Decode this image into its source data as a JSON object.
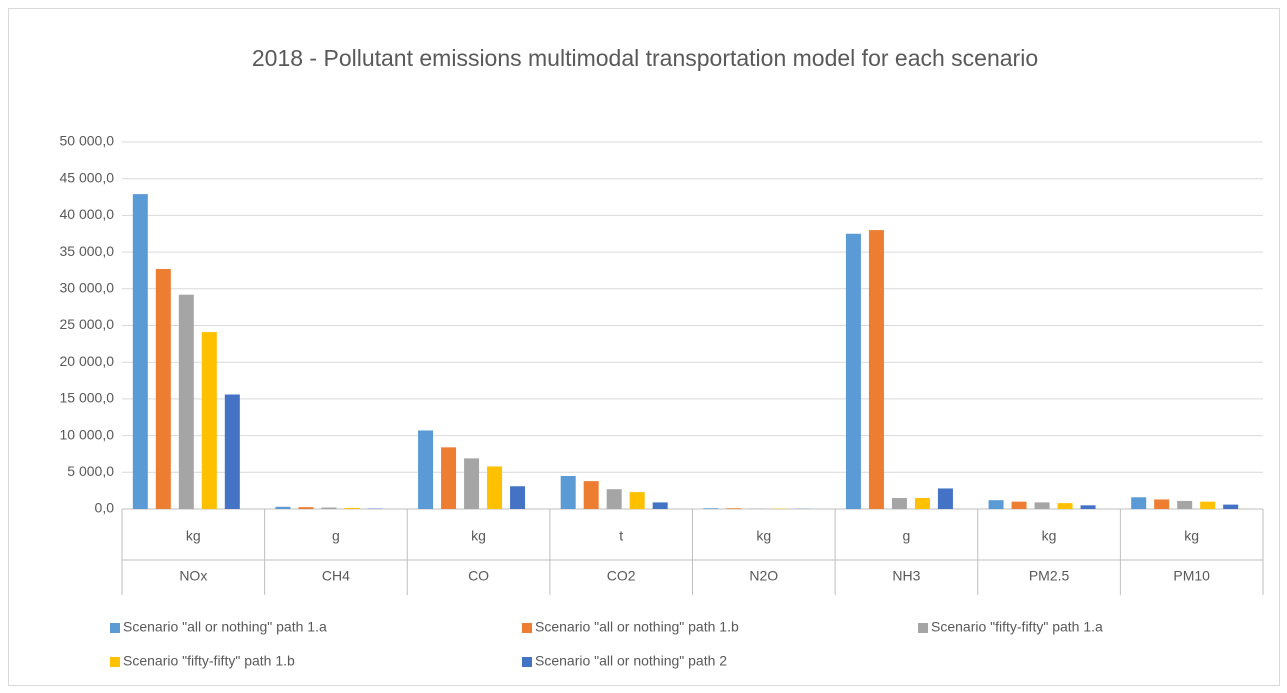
{
  "chart_data": {
    "type": "bar",
    "title": "2018  - Pollutant emissions multimodal transportation model for each scenario",
    "categories": [
      "NOx",
      "CH4",
      "CO",
      "CO2",
      "N2O",
      "NH3",
      "PM2.5",
      "PM10"
    ],
    "units": [
      "kg",
      "g",
      "kg",
      "t",
      "kg",
      "g",
      "kg",
      "kg"
    ],
    "series": [
      {
        "name": "Scenario \"all or nothing\" path 1.a",
        "color": "#5b9bd5",
        "values": [
          42900,
          300,
          10700,
          4500,
          100,
          37500,
          1200,
          1600
        ]
      },
      {
        "name": "Scenario \"all or nothing\" path 1.b",
        "color": "#ed7d31",
        "values": [
          32700,
          250,
          8400,
          3800,
          100,
          38000,
          1000,
          1300
        ]
      },
      {
        "name": "Scenario \"fifty-fifty\" path 1.a",
        "color": "#a5a5a5",
        "values": [
          29200,
          200,
          6900,
          2700,
          50,
          1500,
          900,
          1100
        ]
      },
      {
        "name": "Scenario \"fifty-fifty\" path 1.b",
        "color": "#ffc000",
        "values": [
          24100,
          150,
          5800,
          2300,
          50,
          1500,
          800,
          1000
        ]
      },
      {
        "name": "Scenario \"all or nothing\" path 2",
        "color": "#4472c4",
        "values": [
          15600,
          50,
          3100,
          900,
          20,
          2800,
          500,
          600
        ]
      }
    ],
    "ylim": [
      0,
      50000
    ],
    "yticks": [
      {
        "value": 0,
        "label": "0,0"
      },
      {
        "value": 5000,
        "label": "5 000,0"
      },
      {
        "value": 10000,
        "label": "10 000,0"
      },
      {
        "value": 15000,
        "label": "15 000,0"
      },
      {
        "value": 20000,
        "label": "20 000,0"
      },
      {
        "value": 25000,
        "label": "25 000,0"
      },
      {
        "value": 30000,
        "label": "30 000,0"
      },
      {
        "value": 35000,
        "label": "35 000,0"
      },
      {
        "value": 40000,
        "label": "40 000,0"
      },
      {
        "value": 45000,
        "label": "45 000,0"
      },
      {
        "value": 50000,
        "label": "50 000,0"
      }
    ],
    "grid": true,
    "legend": "bottom"
  }
}
